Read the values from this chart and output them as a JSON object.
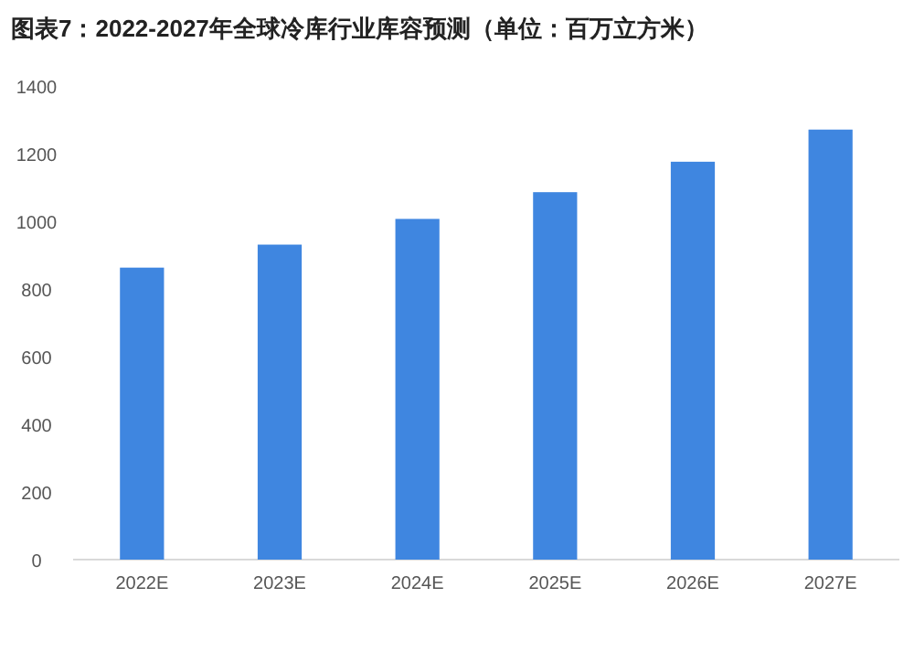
{
  "chart_data": {
    "type": "bar",
    "title": "图表7：2022-2027年全球冷库行业库容预测（单位：百万立方米）",
    "categories": [
      "2022E",
      "2023E",
      "2024E",
      "2025E",
      "2026E",
      "2027E"
    ],
    "values": [
      863,
      931,
      1007,
      1086,
      1176,
      1271
    ],
    "color": "#3f86e0",
    "ylim": [
      0,
      1400
    ],
    "yticks": [
      0,
      200,
      400,
      600,
      800,
      1000,
      1200,
      1400
    ]
  }
}
